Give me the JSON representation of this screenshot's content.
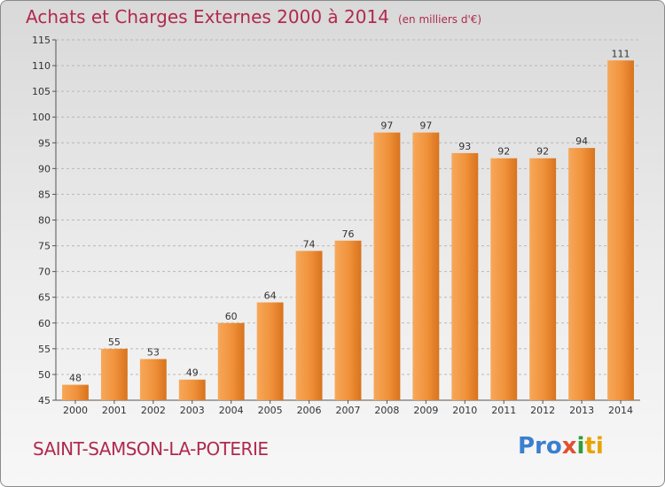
{
  "header": {
    "title": "Achats et Charges Externes 2000 à 2014",
    "subtitle": "(en milliers d'€)"
  },
  "footer": {
    "commune": "SAINT-SAMSON-LA-POTERIE",
    "logo": {
      "p1": "Pro",
      "p2": "x",
      "p3": "i",
      "p4": "ti"
    }
  },
  "colors": {
    "bar": "#f0913a",
    "bar_light": "#f6a85a",
    "bar_dark": "#d8731e",
    "title": "#b02a4c"
  },
  "chart_data": {
    "type": "bar",
    "title": "Achats et Charges Externes 2000 à 2014",
    "subtitle": "(en milliers d'€)",
    "xlabel": "",
    "ylabel": "",
    "categories": [
      "2000",
      "2001",
      "2002",
      "2003",
      "2004",
      "2005",
      "2006",
      "2007",
      "2008",
      "2009",
      "2010",
      "2011",
      "2012",
      "2013",
      "2014"
    ],
    "values": [
      48,
      55,
      53,
      49,
      60,
      64,
      74,
      76,
      97,
      97,
      93,
      92,
      92,
      94,
      111
    ],
    "ylim": [
      45,
      115
    ],
    "yticks": [
      45,
      50,
      55,
      60,
      65,
      70,
      75,
      80,
      85,
      90,
      95,
      100,
      105,
      110,
      115
    ],
    "grid": true,
    "legend": "none"
  }
}
